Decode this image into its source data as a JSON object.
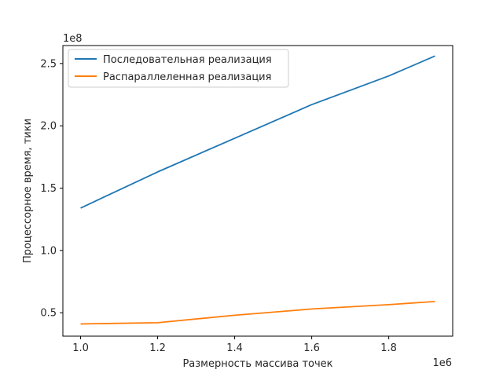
{
  "chart_data": {
    "type": "line",
    "title": "",
    "xlabel": "Размерность массива точек",
    "ylabel": "Процессорное время, тики",
    "x_offset_label": "1e6",
    "y_offset_label": "1e8",
    "x_scale": 1000000,
    "y_scale": 100000000,
    "xlim": [
      0.954,
      1.966
    ],
    "ylim": [
      0.312,
      2.644
    ],
    "xticks": [
      1.0,
      1.2,
      1.4,
      1.6,
      1.8
    ],
    "xtick_labels": [
      "1.0",
      "1.2",
      "1.4",
      "1.6",
      "1.8"
    ],
    "yticks": [
      0.5,
      1.0,
      1.5,
      2.0,
      2.5
    ],
    "ytick_labels": [
      "0.5",
      "1.0",
      "1.5",
      "2.0",
      "2.5"
    ],
    "grid": false,
    "legend_position": "top-left",
    "x": [
      1.0,
      1.2,
      1.4,
      1.6,
      1.8,
      1.92
    ],
    "series": [
      {
        "name": "Последовательная реализация",
        "color": "#1f77b4",
        "values": [
          1.34,
          1.63,
          1.9,
          2.17,
          2.4,
          2.56
        ]
      },
      {
        "name": "Распараллеленная реализация",
        "color": "#ff7f0e",
        "values": [
          0.41,
          0.42,
          0.48,
          0.53,
          0.565,
          0.59
        ]
      }
    ]
  }
}
